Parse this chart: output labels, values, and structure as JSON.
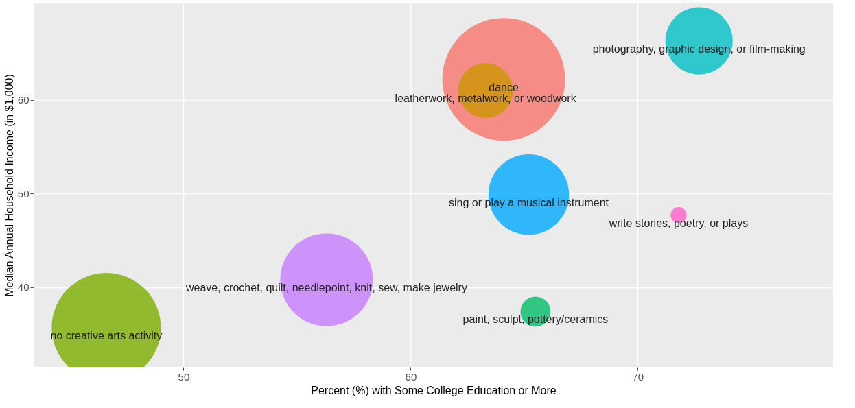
{
  "chart_data": {
    "type": "bubble",
    "xlabel": "Percent (%) with Some College Education or More",
    "ylabel": "Median Annual Household Income (in $1,000)",
    "xlim": [
      43.4,
      78.6
    ],
    "ylim": [
      31.5,
      70.3
    ],
    "xticks": [
      50,
      60,
      70
    ],
    "yticks": [
      40,
      50,
      60
    ],
    "grid": true,
    "legend": false,
    "series": [
      {
        "name": "dance",
        "color": "#f8766d",
        "x": [
          64.1
        ],
        "values": [
          62.2
        ],
        "sizes": [
          1
        ]
      },
      {
        "name": "leatherwork, metalwork, or woodwork",
        "color": "#cd9600",
        "x": [
          63.3
        ],
        "values": [
          61.0
        ],
        "sizes": [
          0.2
        ]
      },
      {
        "name": "no creative arts activity",
        "color": "#7cae00",
        "x": [
          46.6
        ],
        "values": [
          35.7
        ],
        "sizes": [
          0.79
        ]
      },
      {
        "name": "paint, sculpt, pottery/ceramics",
        "color": "#00be67",
        "x": [
          65.5
        ],
        "values": [
          37.4
        ],
        "sizes": [
          0.06
        ]
      },
      {
        "name": "photography, graphic design, or film-making",
        "color": "#00bfc4",
        "x": [
          72.7
        ],
        "values": [
          66.3
        ],
        "sizes": [
          0.3
        ]
      },
      {
        "name": "sing or play a musical instrument",
        "color": "#00a9ff",
        "x": [
          65.2
        ],
        "values": [
          49.9
        ],
        "sizes": [
          0.43
        ]
      },
      {
        "name": "weave, crochet, quilt, needlepoint, knit, sew, make jewelry",
        "color": "#c77cff",
        "x": [
          56.3
        ],
        "values": [
          40.8
        ],
        "sizes": [
          0.57
        ]
      },
      {
        "name": "write stories, poetry, or plays",
        "color": "#ff61cc",
        "x": [
          71.8
        ],
        "values": [
          47.7
        ],
        "sizes": [
          0.017
        ]
      }
    ]
  }
}
